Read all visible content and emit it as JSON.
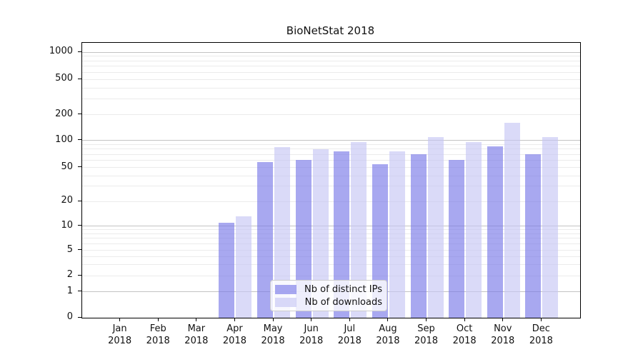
{
  "chart_data": {
    "type": "bar",
    "title": "BioNetStat 2018",
    "x_categories": [
      "Jan",
      "Feb",
      "Mar",
      "Apr",
      "May",
      "Jun",
      "Jul",
      "Aug",
      "Sep",
      "Oct",
      "Nov",
      "Dec"
    ],
    "x_year_label": "2018",
    "y_ticks": [
      0,
      1,
      2,
      5,
      10,
      20,
      50,
      100,
      200,
      500,
      1000
    ],
    "y_scale": "symlog",
    "ylim": [
      0,
      1300
    ],
    "grid": "on",
    "legend_position": "bottom-center",
    "series": [
      {
        "name": "Nb of distinct IPs",
        "color": "#7a7ae8",
        "values": [
          0,
          0,
          0,
          11,
          57,
          61,
          76,
          54,
          70,
          61,
          86,
          70
        ]
      },
      {
        "name": "Nb of downloads",
        "color": "#c6c6f4",
        "values": [
          0,
          0,
          0,
          13,
          84,
          80,
          96,
          75,
          110,
          95,
          160,
          110
        ]
      }
    ]
  }
}
